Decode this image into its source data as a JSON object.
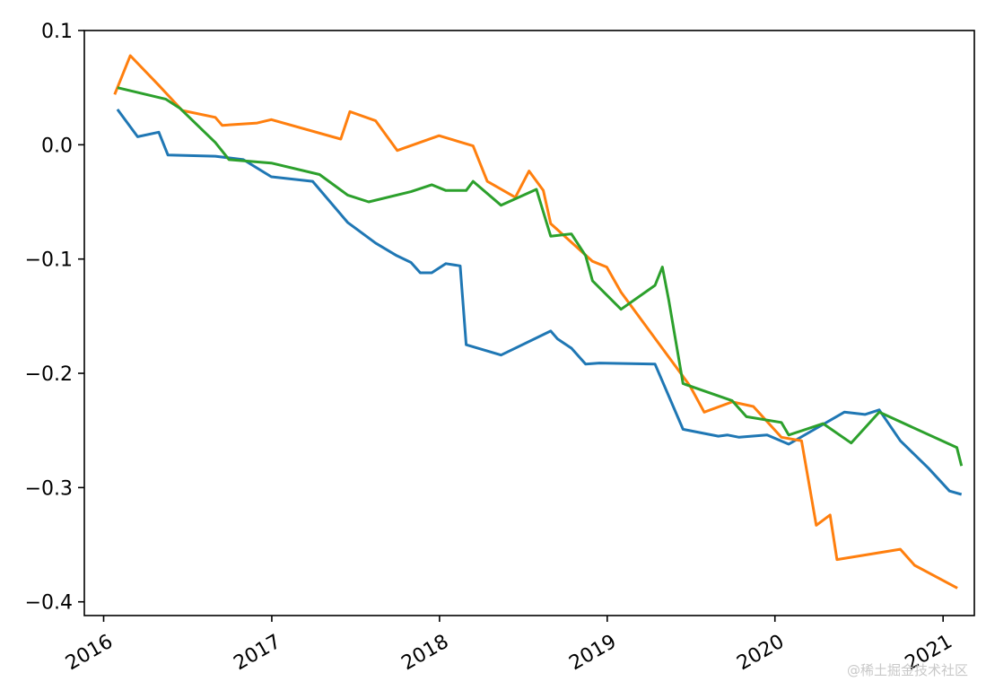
{
  "chart_data": {
    "type": "line",
    "xlabel": "",
    "ylabel": "",
    "x_type": "date",
    "xlim": [
      "2015-11-20",
      "2021-03-10"
    ],
    "ylim": [
      -0.412,
      0.1
    ],
    "grid": false,
    "legend": "none",
    "x_ticks": [
      {
        "date": "2016-01-01",
        "label": "2016"
      },
      {
        "date": "2017-01-01",
        "label": "2017"
      },
      {
        "date": "2018-01-01",
        "label": "2018"
      },
      {
        "date": "2019-01-01",
        "label": "2019"
      },
      {
        "date": "2020-01-01",
        "label": "2020"
      },
      {
        "date": "2021-01-01",
        "label": "2021"
      }
    ],
    "y_ticks": [
      {
        "value": 0.1,
        "label": "0.1"
      },
      {
        "value": 0.0,
        "label": "0.0"
      },
      {
        "value": -0.1,
        "label": "−0.1"
      },
      {
        "value": -0.2,
        "label": "−0.2"
      },
      {
        "value": -0.3,
        "label": "−0.3"
      },
      {
        "value": -0.4,
        "label": "−0.4"
      }
    ],
    "series": [
      {
        "color": "#1f77b4",
        "points": [
          [
            "2016-01-31",
            0.031
          ],
          [
            "2016-03-15",
            0.007
          ],
          [
            "2016-04-30",
            0.011
          ],
          [
            "2016-05-20",
            -0.009
          ],
          [
            "2016-08-31",
            -0.01
          ],
          [
            "2016-10-31",
            -0.013
          ],
          [
            "2016-12-31",
            -0.028
          ],
          [
            "2017-03-31",
            -0.032
          ],
          [
            "2017-06-15",
            -0.068
          ],
          [
            "2017-08-15",
            -0.086
          ],
          [
            "2017-09-30",
            -0.097
          ],
          [
            "2017-10-31",
            -0.103
          ],
          [
            "2017-11-20",
            -0.112
          ],
          [
            "2017-12-15",
            -0.112
          ],
          [
            "2018-01-15",
            -0.104
          ],
          [
            "2018-02-15",
            -0.106
          ],
          [
            "2018-02-28",
            -0.175
          ],
          [
            "2018-05-15",
            -0.184
          ],
          [
            "2018-08-31",
            -0.163
          ],
          [
            "2018-09-15",
            -0.17
          ],
          [
            "2018-10-15",
            -0.178
          ],
          [
            "2018-11-15",
            -0.192
          ],
          [
            "2018-12-15",
            -0.191
          ],
          [
            "2019-04-15",
            -0.192
          ],
          [
            "2019-06-15",
            -0.249
          ],
          [
            "2019-08-31",
            -0.255
          ],
          [
            "2019-09-20",
            -0.254
          ],
          [
            "2019-10-15",
            -0.256
          ],
          [
            "2019-12-15",
            -0.254
          ],
          [
            "2020-01-31",
            -0.262
          ],
          [
            "2020-05-31",
            -0.234
          ],
          [
            "2020-07-15",
            -0.236
          ],
          [
            "2020-08-15",
            -0.232
          ],
          [
            "2020-09-30",
            -0.259
          ],
          [
            "2020-11-30",
            -0.283
          ],
          [
            "2021-01-15",
            -0.303
          ],
          [
            "2021-02-10",
            -0.306
          ]
        ]
      },
      {
        "color": "#ff7f0e",
        "points": [
          [
            "2016-01-25",
            0.044
          ],
          [
            "2016-02-28",
            0.078
          ],
          [
            "2016-04-30",
            0.052
          ],
          [
            "2016-06-20",
            0.03
          ],
          [
            "2016-08-31",
            0.024
          ],
          [
            "2016-09-15",
            0.017
          ],
          [
            "2016-11-30",
            0.019
          ],
          [
            "2016-12-31",
            0.022
          ],
          [
            "2017-05-31",
            0.005
          ],
          [
            "2017-06-20",
            0.029
          ],
          [
            "2017-08-15",
            0.021
          ],
          [
            "2017-10-01",
            -0.005
          ],
          [
            "2017-12-31",
            0.008
          ],
          [
            "2018-03-15",
            -0.001
          ],
          [
            "2018-04-15",
            -0.032
          ],
          [
            "2018-06-15",
            -0.046
          ],
          [
            "2018-07-15",
            -0.023
          ],
          [
            "2018-08-15",
            -0.04
          ],
          [
            "2018-08-31",
            -0.069
          ],
          [
            "2018-11-30",
            -0.102
          ],
          [
            "2018-12-31",
            -0.107
          ],
          [
            "2019-01-31",
            -0.129
          ],
          [
            "2019-06-30",
            -0.211
          ],
          [
            "2019-07-31",
            -0.234
          ],
          [
            "2019-09-30",
            -0.225
          ],
          [
            "2019-11-15",
            -0.229
          ],
          [
            "2020-01-15",
            -0.256
          ],
          [
            "2020-02-28",
            -0.259
          ],
          [
            "2020-03-31",
            -0.333
          ],
          [
            "2020-04-30",
            -0.324
          ],
          [
            "2020-05-15",
            -0.363
          ],
          [
            "2020-09-30",
            -0.354
          ],
          [
            "2020-10-31",
            -0.368
          ],
          [
            "2021-02-01",
            -0.388
          ]
        ]
      },
      {
        "color": "#2ca02c",
        "points": [
          [
            "2016-01-31",
            0.05
          ],
          [
            "2016-05-15",
            0.04
          ],
          [
            "2016-06-15",
            0.032
          ],
          [
            "2016-08-31",
            0.002
          ],
          [
            "2016-09-30",
            -0.013
          ],
          [
            "2016-12-31",
            -0.016
          ],
          [
            "2017-04-15",
            -0.026
          ],
          [
            "2017-06-15",
            -0.044
          ],
          [
            "2017-07-31",
            -0.05
          ],
          [
            "2017-10-31",
            -0.041
          ],
          [
            "2017-12-15",
            -0.035
          ],
          [
            "2018-01-15",
            -0.04
          ],
          [
            "2018-02-28",
            -0.04
          ],
          [
            "2018-03-15",
            -0.032
          ],
          [
            "2018-05-15",
            -0.053
          ],
          [
            "2018-07-31",
            -0.039
          ],
          [
            "2018-08-31",
            -0.08
          ],
          [
            "2018-10-15",
            -0.078
          ],
          [
            "2018-11-15",
            -0.097
          ],
          [
            "2018-11-30",
            -0.119
          ],
          [
            "2019-01-31",
            -0.144
          ],
          [
            "2019-04-15",
            -0.123
          ],
          [
            "2019-05-01",
            -0.107
          ],
          [
            "2019-05-15",
            -0.136
          ],
          [
            "2019-06-15",
            -0.209
          ],
          [
            "2019-09-30",
            -0.224
          ],
          [
            "2019-10-31",
            -0.238
          ],
          [
            "2020-01-15",
            -0.243
          ],
          [
            "2020-01-31",
            -0.254
          ],
          [
            "2020-04-15",
            -0.244
          ],
          [
            "2020-06-15",
            -0.261
          ],
          [
            "2020-08-15",
            -0.234
          ],
          [
            "2021-01-31",
            -0.265
          ],
          [
            "2021-02-10",
            -0.281
          ]
        ]
      }
    ]
  },
  "watermark": "@稀土掘金技术社区"
}
